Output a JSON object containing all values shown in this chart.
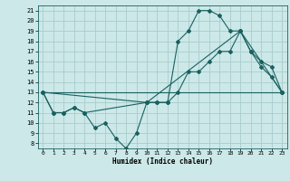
{
  "title": "",
  "xlabel": "Humidex (Indice chaleur)",
  "bg_color": "#cce8e8",
  "grid_color": "#aacccc",
  "line_color": "#1a6060",
  "xlim": [
    -0.5,
    23.5
  ],
  "ylim": [
    7.5,
    21.5
  ],
  "xticks": [
    0,
    1,
    2,
    3,
    4,
    5,
    6,
    7,
    8,
    9,
    10,
    11,
    12,
    13,
    14,
    15,
    16,
    17,
    18,
    19,
    20,
    21,
    22,
    23
  ],
  "yticks": [
    8,
    9,
    10,
    11,
    12,
    13,
    14,
    15,
    16,
    17,
    18,
    19,
    20,
    21
  ],
  "series1_x": [
    0,
    1,
    2,
    3,
    4,
    5,
    6,
    7,
    8,
    9,
    10,
    11,
    12,
    13,
    14,
    15,
    16,
    17,
    18,
    19,
    20,
    21,
    22,
    23
  ],
  "series1_y": [
    13,
    11,
    11,
    11.5,
    11,
    9.5,
    10,
    8.5,
    7.5,
    9,
    12,
    12,
    12,
    18,
    19,
    21,
    21,
    20.5,
    19,
    19,
    17,
    15.5,
    14.5,
    13
  ],
  "series2_x": [
    0,
    1,
    2,
    3,
    4,
    10,
    11,
    12,
    13,
    14,
    15,
    16,
    17,
    18,
    19,
    20,
    21,
    22,
    23
  ],
  "series2_y": [
    13,
    11,
    11,
    11.5,
    11,
    12,
    12,
    12,
    13,
    15,
    15,
    16,
    17,
    17,
    19,
    17,
    16,
    15.5,
    13
  ],
  "series3_x": [
    0,
    10,
    19,
    23
  ],
  "series3_y": [
    13,
    12,
    19,
    13
  ],
  "series4_x": [
    0,
    23
  ],
  "series4_y": [
    13,
    13
  ]
}
